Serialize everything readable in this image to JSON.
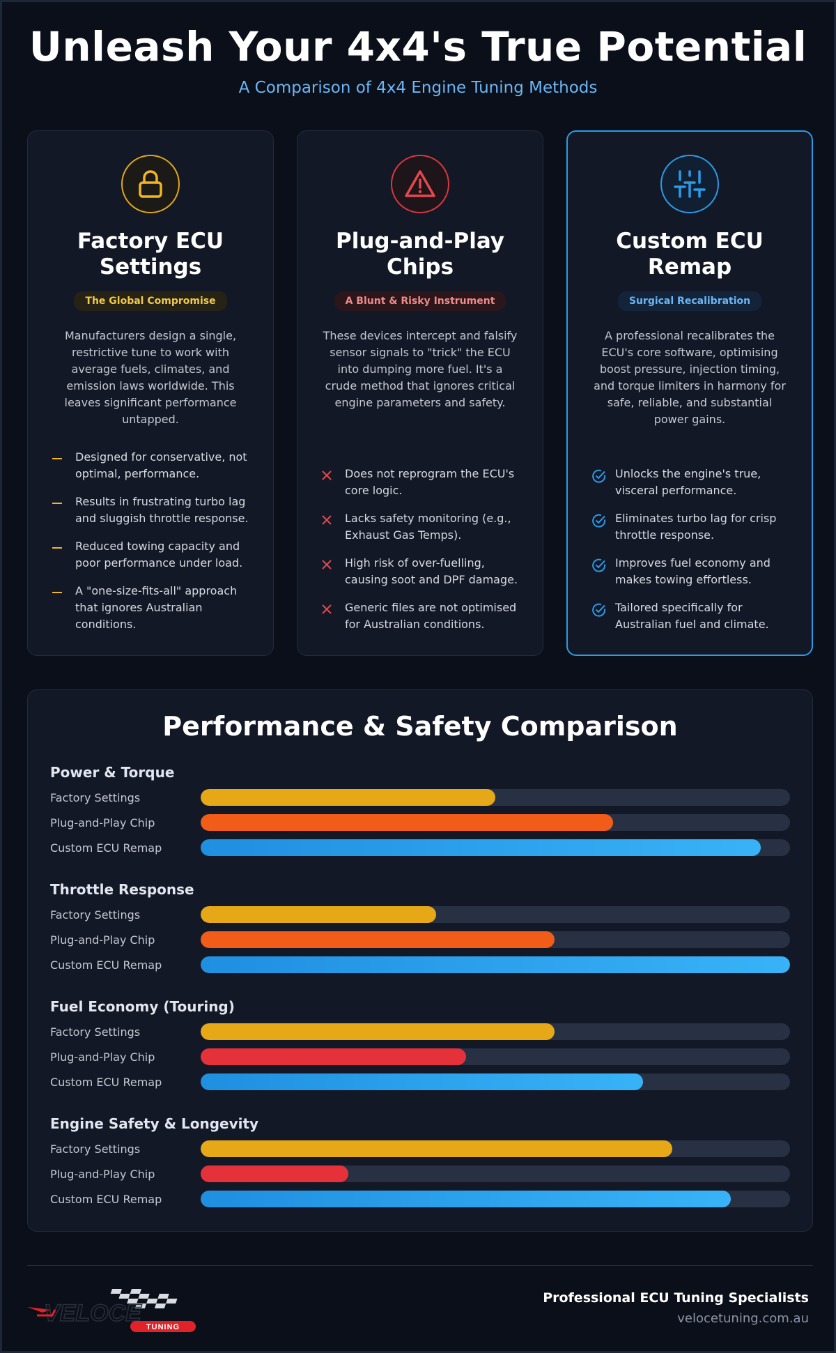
{
  "header": {
    "title": "Unleash Your 4x4's True Potential",
    "subtitle": "A Comparison of 4x4 Engine Tuning Methods"
  },
  "cards": [
    {
      "icon": "lock-icon",
      "title_line1": "Factory ECU",
      "title_line2": "Settings",
      "badge": "The Global Compromise",
      "description": "Manufacturers design a single, restrictive tune to work with average fuels, climates, and emission laws worldwide. This leaves significant performance untapped.",
      "marker": "dash",
      "accent": "#f2b524",
      "points": [
        "Designed for conservative, not optimal, performance.",
        "Results in frustrating turbo lag and sluggish throttle response.",
        "Reduced towing capacity and poor performance under load.",
        "A \"one-size-fits-all\" approach that ignores Australian conditions."
      ]
    },
    {
      "icon": "warning-triangle-icon",
      "title_line1": "Plug-and-Play",
      "title_line2": "Chips",
      "badge": "A Blunt & Risky Instrument",
      "description": "These devices intercept and falsify sensor signals to \"trick\" the ECU into dumping more fuel. It's a crude method that ignores critical engine parameters and safety.",
      "marker": "cross",
      "accent": "#e5484d",
      "points": [
        "Does not reprogram the ECU's core logic.",
        "Lacks safety monitoring (e.g., Exhaust Gas Temps).",
        "High risk of over-fuelling, causing soot and DPF damage.",
        "Generic files are not optimised for Australian conditions."
      ]
    },
    {
      "icon": "sliders-icon",
      "title_line1": "Custom ECU",
      "title_line2": "Remap",
      "badge": "Surgical Recalibration",
      "description": "A professional recalibrates the ECU's core software, optimising boost pressure, injection timing, and torque limiters in harmony for safe, reliable, and substantial power gains.",
      "marker": "check",
      "accent": "#2b9be6",
      "points": [
        "Unlocks the engine's true, visceral performance.",
        "Eliminates turbo lag for crisp throttle response.",
        "Improves fuel economy and makes towing effortless.",
        "Tailored specifically for Australian fuel and climate."
      ]
    }
  ],
  "comparison": {
    "title": "Performance & Safety Comparison",
    "groups": [
      {
        "title": "Power & Torque",
        "bars": [
          {
            "label": "Factory Settings",
            "value": 50,
            "color": "#e6a817"
          },
          {
            "label": "Plug-and-Play Chip",
            "value": 70,
            "color": "#f25c19"
          },
          {
            "label": "Custom ECU Remap",
            "value": 95,
            "color": "#2b9be6"
          }
        ]
      },
      {
        "title": "Throttle Response",
        "bars": [
          {
            "label": "Factory Settings",
            "value": 40,
            "color": "#e6a817"
          },
          {
            "label": "Plug-and-Play Chip",
            "value": 60,
            "color": "#f25c19"
          },
          {
            "label": "Custom ECU Remap",
            "value": 100,
            "color": "#2b9be6"
          }
        ]
      },
      {
        "title": "Fuel Economy (Touring)",
        "bars": [
          {
            "label": "Factory Settings",
            "value": 60,
            "color": "#e6a817"
          },
          {
            "label": "Plug-and-Play Chip",
            "value": 45,
            "color": "#e5323a"
          },
          {
            "label": "Custom ECU Remap",
            "value": 75,
            "color": "#2b9be6"
          }
        ]
      },
      {
        "title": "Engine Safety & Longevity",
        "bars": [
          {
            "label": "Factory Settings",
            "value": 80,
            "color": "#e6a817"
          },
          {
            "label": "Plug-and-Play Chip",
            "value": 25,
            "color": "#e5323a"
          },
          {
            "label": "Custom ECU Remap",
            "value": 90,
            "color": "#2b9be6"
          }
        ]
      }
    ]
  },
  "footer": {
    "logo_text": "VELOCE",
    "logo_sub": "TUNING",
    "tagline": "Professional ECU Tuning Specialists",
    "url": "velocetuning.com.au"
  }
}
